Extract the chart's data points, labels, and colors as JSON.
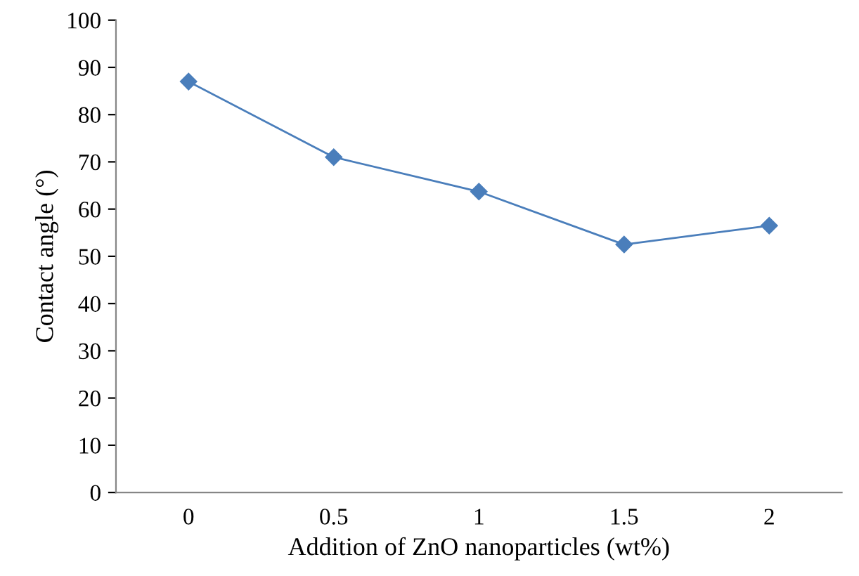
{
  "chart_data": {
    "type": "line",
    "xlabel": "Addition of ZnO nanoparticles (wt%)",
    "ylabel": "Contact angle (°)",
    "categories": [
      "0",
      "0.5",
      "1",
      "1.5",
      "2"
    ],
    "series": [
      {
        "color": "#4a7ebb",
        "values": [
          87,
          71,
          63.7,
          52.5,
          56.5
        ]
      }
    ],
    "ylim": [
      0,
      100
    ],
    "yticks": [
      0,
      10,
      20,
      30,
      40,
      50,
      60,
      70,
      80,
      90,
      100
    ],
    "marker": "diamond",
    "line_style": "solid",
    "grid": false,
    "legend": false
  }
}
